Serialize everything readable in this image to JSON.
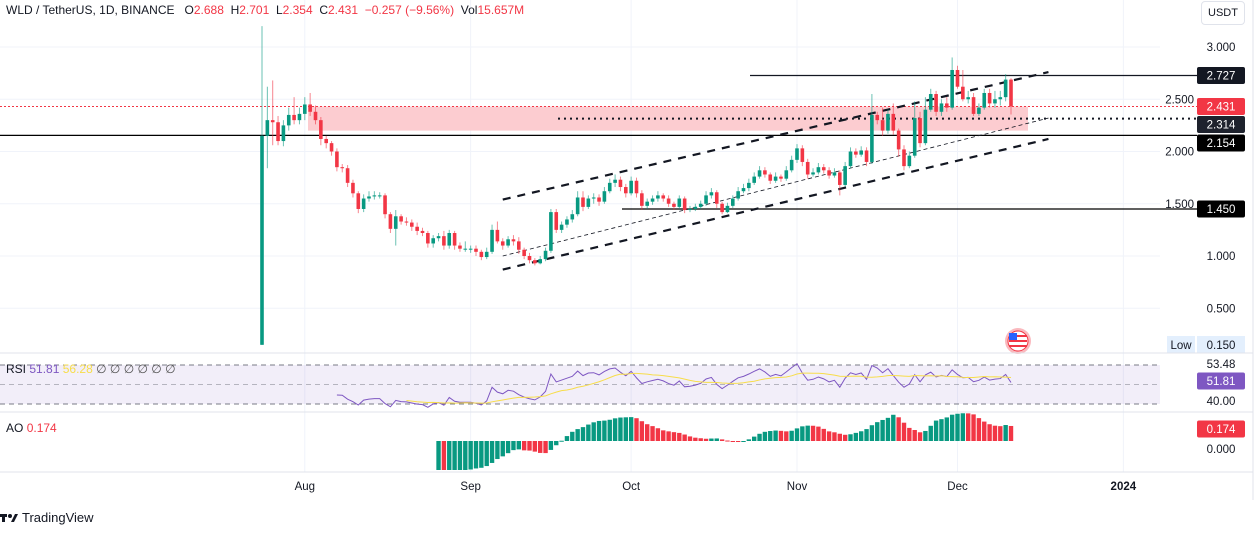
{
  "header": {
    "symbol": "WLD / TetherUS, 1D, BINANCE",
    "o_label": "O",
    "o": "2.688",
    "h_label": "H",
    "h": "2.701",
    "l_label": "L",
    "l": "2.354",
    "c_label": "C",
    "c": "2.431",
    "change": "−0.257 (−9.56%)",
    "vol_label": "Vol",
    "vol": "15.657M"
  },
  "price_axis": {
    "currency": "USDT",
    "ticks": [
      "3.000",
      "2.500",
      "2.000",
      "1.500",
      "1.000",
      "0.500"
    ],
    "tick_values": [
      3.0,
      2.5,
      2.0,
      1.5,
      1.0,
      0.5
    ],
    "low_label": "Low",
    "low_value": "0.150"
  },
  "badges": {
    "resistance": "2.727",
    "last_price": "2.431",
    "dotted_level": "2.314",
    "support": "2.154",
    "lower_support": "1.450"
  },
  "levels": {
    "resistance": 2.727,
    "last_price": 2.431,
    "dotted_level": 2.314,
    "support": 2.154,
    "lower_support": 1.45,
    "zone": [
      2.2,
      2.43
    ]
  },
  "rsi": {
    "label": "RSI",
    "value": "51.81",
    "ma_value": "56.28",
    "extras": [
      "∅",
      "∅",
      "∅",
      "∅",
      "∅",
      "∅"
    ],
    "axis_top": "53.48",
    "axis_bottom": "40.00",
    "badge": "51.81"
  },
  "ao": {
    "label": "AO",
    "value": "0.174",
    "axis_zero": "0.000",
    "badge": "0.174"
  },
  "time_axis": [
    "Aug",
    "Sep",
    "Oct",
    "Nov",
    "Dec",
    "2024"
  ],
  "footer": {
    "brand": "TradingView"
  },
  "colors": {
    "up": "#089981",
    "down": "#f23645",
    "zone": "#fcc9cd",
    "rsi": "#7e57c2",
    "rsi_ma": "#f7dd4a",
    "ao_up": "#089981",
    "ao_down": "#f23645"
  },
  "chart_data": {
    "type": "candlestick",
    "title": "WLD / TetherUS, 1D, BINANCE",
    "ylim": [
      0.15,
      3.0
    ],
    "y_scale": "linear",
    "grid": true,
    "columns": [
      "date",
      "open",
      "high",
      "low",
      "close"
    ],
    "candles": [
      [
        "2023-07-24",
        0.15,
        3.2,
        0.15,
        2.15
      ],
      [
        "2023-07-25",
        2.15,
        2.62,
        1.84,
        2.3
      ],
      [
        "2023-07-26",
        2.3,
        2.68,
        2.06,
        2.28
      ],
      [
        "2023-07-27",
        2.28,
        2.34,
        2.06,
        2.1
      ],
      [
        "2023-07-28",
        2.1,
        2.3,
        2.05,
        2.25
      ],
      [
        "2023-07-29",
        2.25,
        2.42,
        2.2,
        2.35
      ],
      [
        "2023-07-30",
        2.35,
        2.52,
        2.26,
        2.3
      ],
      [
        "2023-07-31",
        2.3,
        2.42,
        2.26,
        2.36
      ],
      [
        "2023-08-01",
        2.36,
        2.52,
        2.3,
        2.45
      ],
      [
        "2023-08-02",
        2.45,
        2.56,
        2.34,
        2.38
      ],
      [
        "2023-08-03",
        2.38,
        2.44,
        2.26,
        2.3
      ],
      [
        "2023-08-04",
        2.3,
        2.33,
        2.06,
        2.12
      ],
      [
        "2023-08-05",
        2.12,
        2.15,
        2.03,
        2.08
      ],
      [
        "2023-08-06",
        2.08,
        2.1,
        1.96,
        2.0
      ],
      [
        "2023-08-07",
        2.0,
        2.03,
        1.81,
        1.85
      ],
      [
        "2023-08-08",
        1.85,
        1.88,
        1.8,
        1.84
      ],
      [
        "2023-08-09",
        1.84,
        1.87,
        1.66,
        1.7
      ],
      [
        "2023-08-10",
        1.7,
        1.73,
        1.56,
        1.6
      ],
      [
        "2023-08-11",
        1.6,
        1.62,
        1.41,
        1.45
      ],
      [
        "2023-08-12",
        1.45,
        1.59,
        1.42,
        1.55
      ],
      [
        "2023-08-13",
        1.55,
        1.62,
        1.52,
        1.57
      ],
      [
        "2023-08-14",
        1.57,
        1.62,
        1.54,
        1.58
      ],
      [
        "2023-08-15",
        1.58,
        1.61,
        1.55,
        1.58
      ],
      [
        "2023-08-16",
        1.58,
        1.6,
        1.36,
        1.4
      ],
      [
        "2023-08-17",
        1.4,
        1.42,
        1.22,
        1.26
      ],
      [
        "2023-08-18",
        1.26,
        1.44,
        1.1,
        1.38
      ],
      [
        "2023-08-19",
        1.38,
        1.4,
        1.3,
        1.33
      ],
      [
        "2023-08-20",
        1.33,
        1.37,
        1.29,
        1.32
      ],
      [
        "2023-08-21",
        1.32,
        1.35,
        1.24,
        1.28
      ],
      [
        "2023-08-22",
        1.28,
        1.32,
        1.2,
        1.24
      ],
      [
        "2023-08-23",
        1.24,
        1.27,
        1.19,
        1.22
      ],
      [
        "2023-08-24",
        1.22,
        1.24,
        1.08,
        1.12
      ],
      [
        "2023-08-25",
        1.12,
        1.2,
        1.08,
        1.17
      ],
      [
        "2023-08-26",
        1.17,
        1.22,
        1.14,
        1.19
      ],
      [
        "2023-08-27",
        1.19,
        1.24,
        1.06,
        1.1
      ],
      [
        "2023-08-28",
        1.1,
        1.25,
        1.07,
        1.22
      ],
      [
        "2023-08-29",
        1.22,
        1.24,
        1.06,
        1.1
      ],
      [
        "2023-08-30",
        1.1,
        1.13,
        1.04,
        1.07
      ],
      [
        "2023-08-31",
        1.07,
        1.14,
        1.04,
        1.07
      ],
      [
        "2023-09-01",
        1.07,
        1.1,
        1.03,
        1.07
      ],
      [
        "2023-09-02",
        1.07,
        1.1,
        1.0,
        1.04
      ],
      [
        "2023-09-03",
        1.04,
        1.06,
        0.96,
        0.99
      ],
      [
        "2023-09-04",
        0.99,
        1.08,
        0.97,
        1.04
      ],
      [
        "2023-09-05",
        1.04,
        1.3,
        1.02,
        1.25
      ],
      [
        "2023-09-06",
        1.25,
        1.33,
        1.12,
        1.14
      ],
      [
        "2023-09-07",
        1.14,
        1.17,
        1.06,
        1.1
      ],
      [
        "2023-09-08",
        1.1,
        1.19,
        1.08,
        1.16
      ],
      [
        "2023-09-09",
        1.16,
        1.2,
        1.1,
        1.14
      ],
      [
        "2023-09-10",
        1.14,
        1.18,
        1.02,
        1.06
      ],
      [
        "2023-09-11",
        1.06,
        1.08,
        0.97,
        1.0
      ],
      [
        "2023-09-12",
        1.0,
        1.03,
        0.93,
        0.96
      ],
      [
        "2023-09-13",
        0.96,
        0.98,
        0.91,
        0.93
      ],
      [
        "2023-09-14",
        0.93,
        1.0,
        0.92,
        0.97
      ],
      [
        "2023-09-15",
        0.97,
        1.08,
        0.95,
        1.05
      ],
      [
        "2023-09-16",
        1.05,
        1.45,
        1.03,
        1.42
      ],
      [
        "2023-09-17",
        1.42,
        1.45,
        1.22,
        1.25
      ],
      [
        "2023-09-18",
        1.25,
        1.33,
        1.22,
        1.3
      ],
      [
        "2023-09-19",
        1.3,
        1.38,
        1.27,
        1.35
      ],
      [
        "2023-09-20",
        1.35,
        1.44,
        1.32,
        1.4
      ],
      [
        "2023-09-21",
        1.4,
        1.62,
        1.38,
        1.56
      ],
      [
        "2023-09-22",
        1.56,
        1.62,
        1.43,
        1.47
      ],
      [
        "2023-09-23",
        1.47,
        1.58,
        1.45,
        1.55
      ],
      [
        "2023-09-24",
        1.55,
        1.6,
        1.5,
        1.56
      ],
      [
        "2023-09-25",
        1.56,
        1.59,
        1.48,
        1.52
      ],
      [
        "2023-09-26",
        1.52,
        1.66,
        1.5,
        1.62
      ],
      [
        "2023-09-27",
        1.62,
        1.74,
        1.6,
        1.7
      ],
      [
        "2023-09-28",
        1.7,
        1.78,
        1.66,
        1.73
      ],
      [
        "2023-09-29",
        1.73,
        1.76,
        1.62,
        1.66
      ],
      [
        "2023-09-30",
        1.66,
        1.69,
        1.56,
        1.6
      ],
      [
        "2023-10-01",
        1.6,
        1.76,
        1.58,
        1.72
      ],
      [
        "2023-10-02",
        1.72,
        1.75,
        1.56,
        1.6
      ],
      [
        "2023-10-03",
        1.6,
        1.63,
        1.44,
        1.48
      ],
      [
        "2023-10-04",
        1.48,
        1.55,
        1.45,
        1.52
      ],
      [
        "2023-10-05",
        1.52,
        1.58,
        1.49,
        1.55
      ],
      [
        "2023-10-06",
        1.55,
        1.62,
        1.52,
        1.58
      ],
      [
        "2023-10-07",
        1.58,
        1.6,
        1.52,
        1.55
      ],
      [
        "2023-10-08",
        1.55,
        1.58,
        1.47,
        1.5
      ],
      [
        "2023-10-09",
        1.5,
        1.52,
        1.44,
        1.47
      ],
      [
        "2023-10-10",
        1.47,
        1.58,
        1.45,
        1.55
      ],
      [
        "2023-10-11",
        1.55,
        1.57,
        1.41,
        1.44
      ],
      [
        "2023-10-12",
        1.44,
        1.48,
        1.42,
        1.45
      ],
      [
        "2023-10-13",
        1.45,
        1.5,
        1.43,
        1.47
      ],
      [
        "2023-10-14",
        1.47,
        1.53,
        1.45,
        1.5
      ],
      [
        "2023-10-15",
        1.5,
        1.62,
        1.48,
        1.58
      ],
      [
        "2023-10-16",
        1.58,
        1.65,
        1.55,
        1.61
      ],
      [
        "2023-10-17",
        1.61,
        1.63,
        1.46,
        1.5
      ],
      [
        "2023-10-18",
        1.5,
        1.52,
        1.4,
        1.42
      ],
      [
        "2023-10-19",
        1.42,
        1.51,
        1.41,
        1.48
      ],
      [
        "2023-10-20",
        1.48,
        1.58,
        1.46,
        1.55
      ],
      [
        "2023-10-21",
        1.55,
        1.66,
        1.53,
        1.62
      ],
      [
        "2023-10-22",
        1.62,
        1.69,
        1.6,
        1.65
      ],
      [
        "2023-10-23",
        1.65,
        1.74,
        1.62,
        1.7
      ],
      [
        "2023-10-24",
        1.7,
        1.8,
        1.68,
        1.76
      ],
      [
        "2023-10-25",
        1.76,
        1.86,
        1.74,
        1.82
      ],
      [
        "2023-10-26",
        1.82,
        1.85,
        1.75,
        1.78
      ],
      [
        "2023-10-27",
        1.78,
        1.8,
        1.69,
        1.72
      ],
      [
        "2023-10-28",
        1.72,
        1.8,
        1.7,
        1.76
      ],
      [
        "2023-10-29",
        1.76,
        1.78,
        1.71,
        1.74
      ],
      [
        "2023-10-30",
        1.74,
        1.86,
        1.72,
        1.82
      ],
      [
        "2023-10-31",
        1.82,
        1.96,
        1.8,
        1.92
      ],
      [
        "2023-11-01",
        1.92,
        2.07,
        1.89,
        2.03
      ],
      [
        "2023-11-02",
        2.03,
        2.06,
        1.86,
        1.9
      ],
      [
        "2023-11-03",
        1.9,
        1.93,
        1.74,
        1.78
      ],
      [
        "2023-11-04",
        1.78,
        1.84,
        1.76,
        1.8
      ],
      [
        "2023-11-05",
        1.8,
        1.89,
        1.78,
        1.85
      ],
      [
        "2023-11-06",
        1.85,
        1.88,
        1.79,
        1.82
      ],
      [
        "2023-11-07",
        1.82,
        1.85,
        1.74,
        1.77
      ],
      [
        "2023-11-08",
        1.77,
        1.84,
        1.75,
        1.8
      ],
      [
        "2023-11-09",
        1.8,
        1.82,
        1.58,
        1.68
      ],
      [
        "2023-11-10",
        1.68,
        1.9,
        1.66,
        1.86
      ],
      [
        "2023-11-11",
        1.86,
        2.04,
        1.84,
        2.0
      ],
      [
        "2023-11-12",
        2.0,
        2.03,
        1.94,
        1.97
      ],
      [
        "2023-11-13",
        1.97,
        2.05,
        1.95,
        2.01
      ],
      [
        "2023-11-14",
        2.01,
        2.04,
        1.86,
        1.9
      ],
      [
        "2023-11-15",
        1.9,
        2.55,
        1.88,
        2.35
      ],
      [
        "2023-11-16",
        2.35,
        2.38,
        2.26,
        2.3
      ],
      [
        "2023-11-17",
        2.3,
        2.42,
        2.15,
        2.2
      ],
      [
        "2023-11-18",
        2.2,
        2.4,
        2.17,
        2.36
      ],
      [
        "2023-11-19",
        2.36,
        2.46,
        2.16,
        2.2
      ],
      [
        "2023-11-20",
        2.2,
        2.22,
        1.95,
        2.02
      ],
      [
        "2023-11-21",
        2.02,
        2.06,
        1.82,
        1.86
      ],
      [
        "2023-11-22",
        1.86,
        2.0,
        1.84,
        1.96
      ],
      [
        "2023-11-23",
        1.96,
        2.48,
        1.94,
        2.32
      ],
      [
        "2023-11-24",
        2.32,
        2.38,
        2.04,
        2.08
      ],
      [
        "2023-11-25",
        2.08,
        2.52,
        2.06,
        2.4
      ],
      [
        "2023-11-26",
        2.4,
        2.6,
        2.38,
        2.55
      ],
      [
        "2023-11-27",
        2.55,
        2.58,
        2.34,
        2.38
      ],
      [
        "2023-11-28",
        2.38,
        2.5,
        2.34,
        2.46
      ],
      [
        "2023-11-29",
        2.46,
        2.52,
        2.38,
        2.42
      ],
      [
        "2023-11-30",
        2.42,
        2.9,
        2.4,
        2.78
      ],
      [
        "2023-12-01",
        2.78,
        2.82,
        2.6,
        2.62
      ],
      [
        "2023-12-02",
        2.62,
        2.78,
        2.48,
        2.5
      ],
      [
        "2023-12-03",
        2.5,
        2.58,
        2.46,
        2.52
      ],
      [
        "2023-12-04",
        2.52,
        2.56,
        2.34,
        2.36
      ],
      [
        "2023-12-05",
        2.36,
        2.46,
        2.34,
        2.42
      ],
      [
        "2023-12-06",
        2.42,
        2.6,
        2.4,
        2.56
      ],
      [
        "2023-12-07",
        2.56,
        2.6,
        2.42,
        2.46
      ],
      [
        "2023-12-08",
        2.46,
        2.58,
        2.42,
        2.5
      ],
      [
        "2023-12-09",
        2.5,
        2.58,
        2.44,
        2.52
      ],
      [
        "2023-12-10",
        2.52,
        2.74,
        2.48,
        2.688
      ],
      [
        "2023-12-11",
        2.688,
        2.701,
        2.354,
        2.431
      ]
    ],
    "channel": {
      "upper": [
        [
          "2023-09-07",
          1.54
        ],
        [
          "2023-12-18",
          2.76
        ]
      ],
      "middle": [
        [
          "2023-09-07",
          1.0
        ],
        [
          "2023-12-18",
          2.32
        ]
      ],
      "lower": [
        [
          "2023-09-07",
          0.87
        ],
        [
          "2023-12-18",
          2.12
        ]
      ]
    },
    "x_ticks": [
      "Aug",
      "Sep",
      "Oct",
      "Nov",
      "Dec",
      "2024"
    ]
  }
}
